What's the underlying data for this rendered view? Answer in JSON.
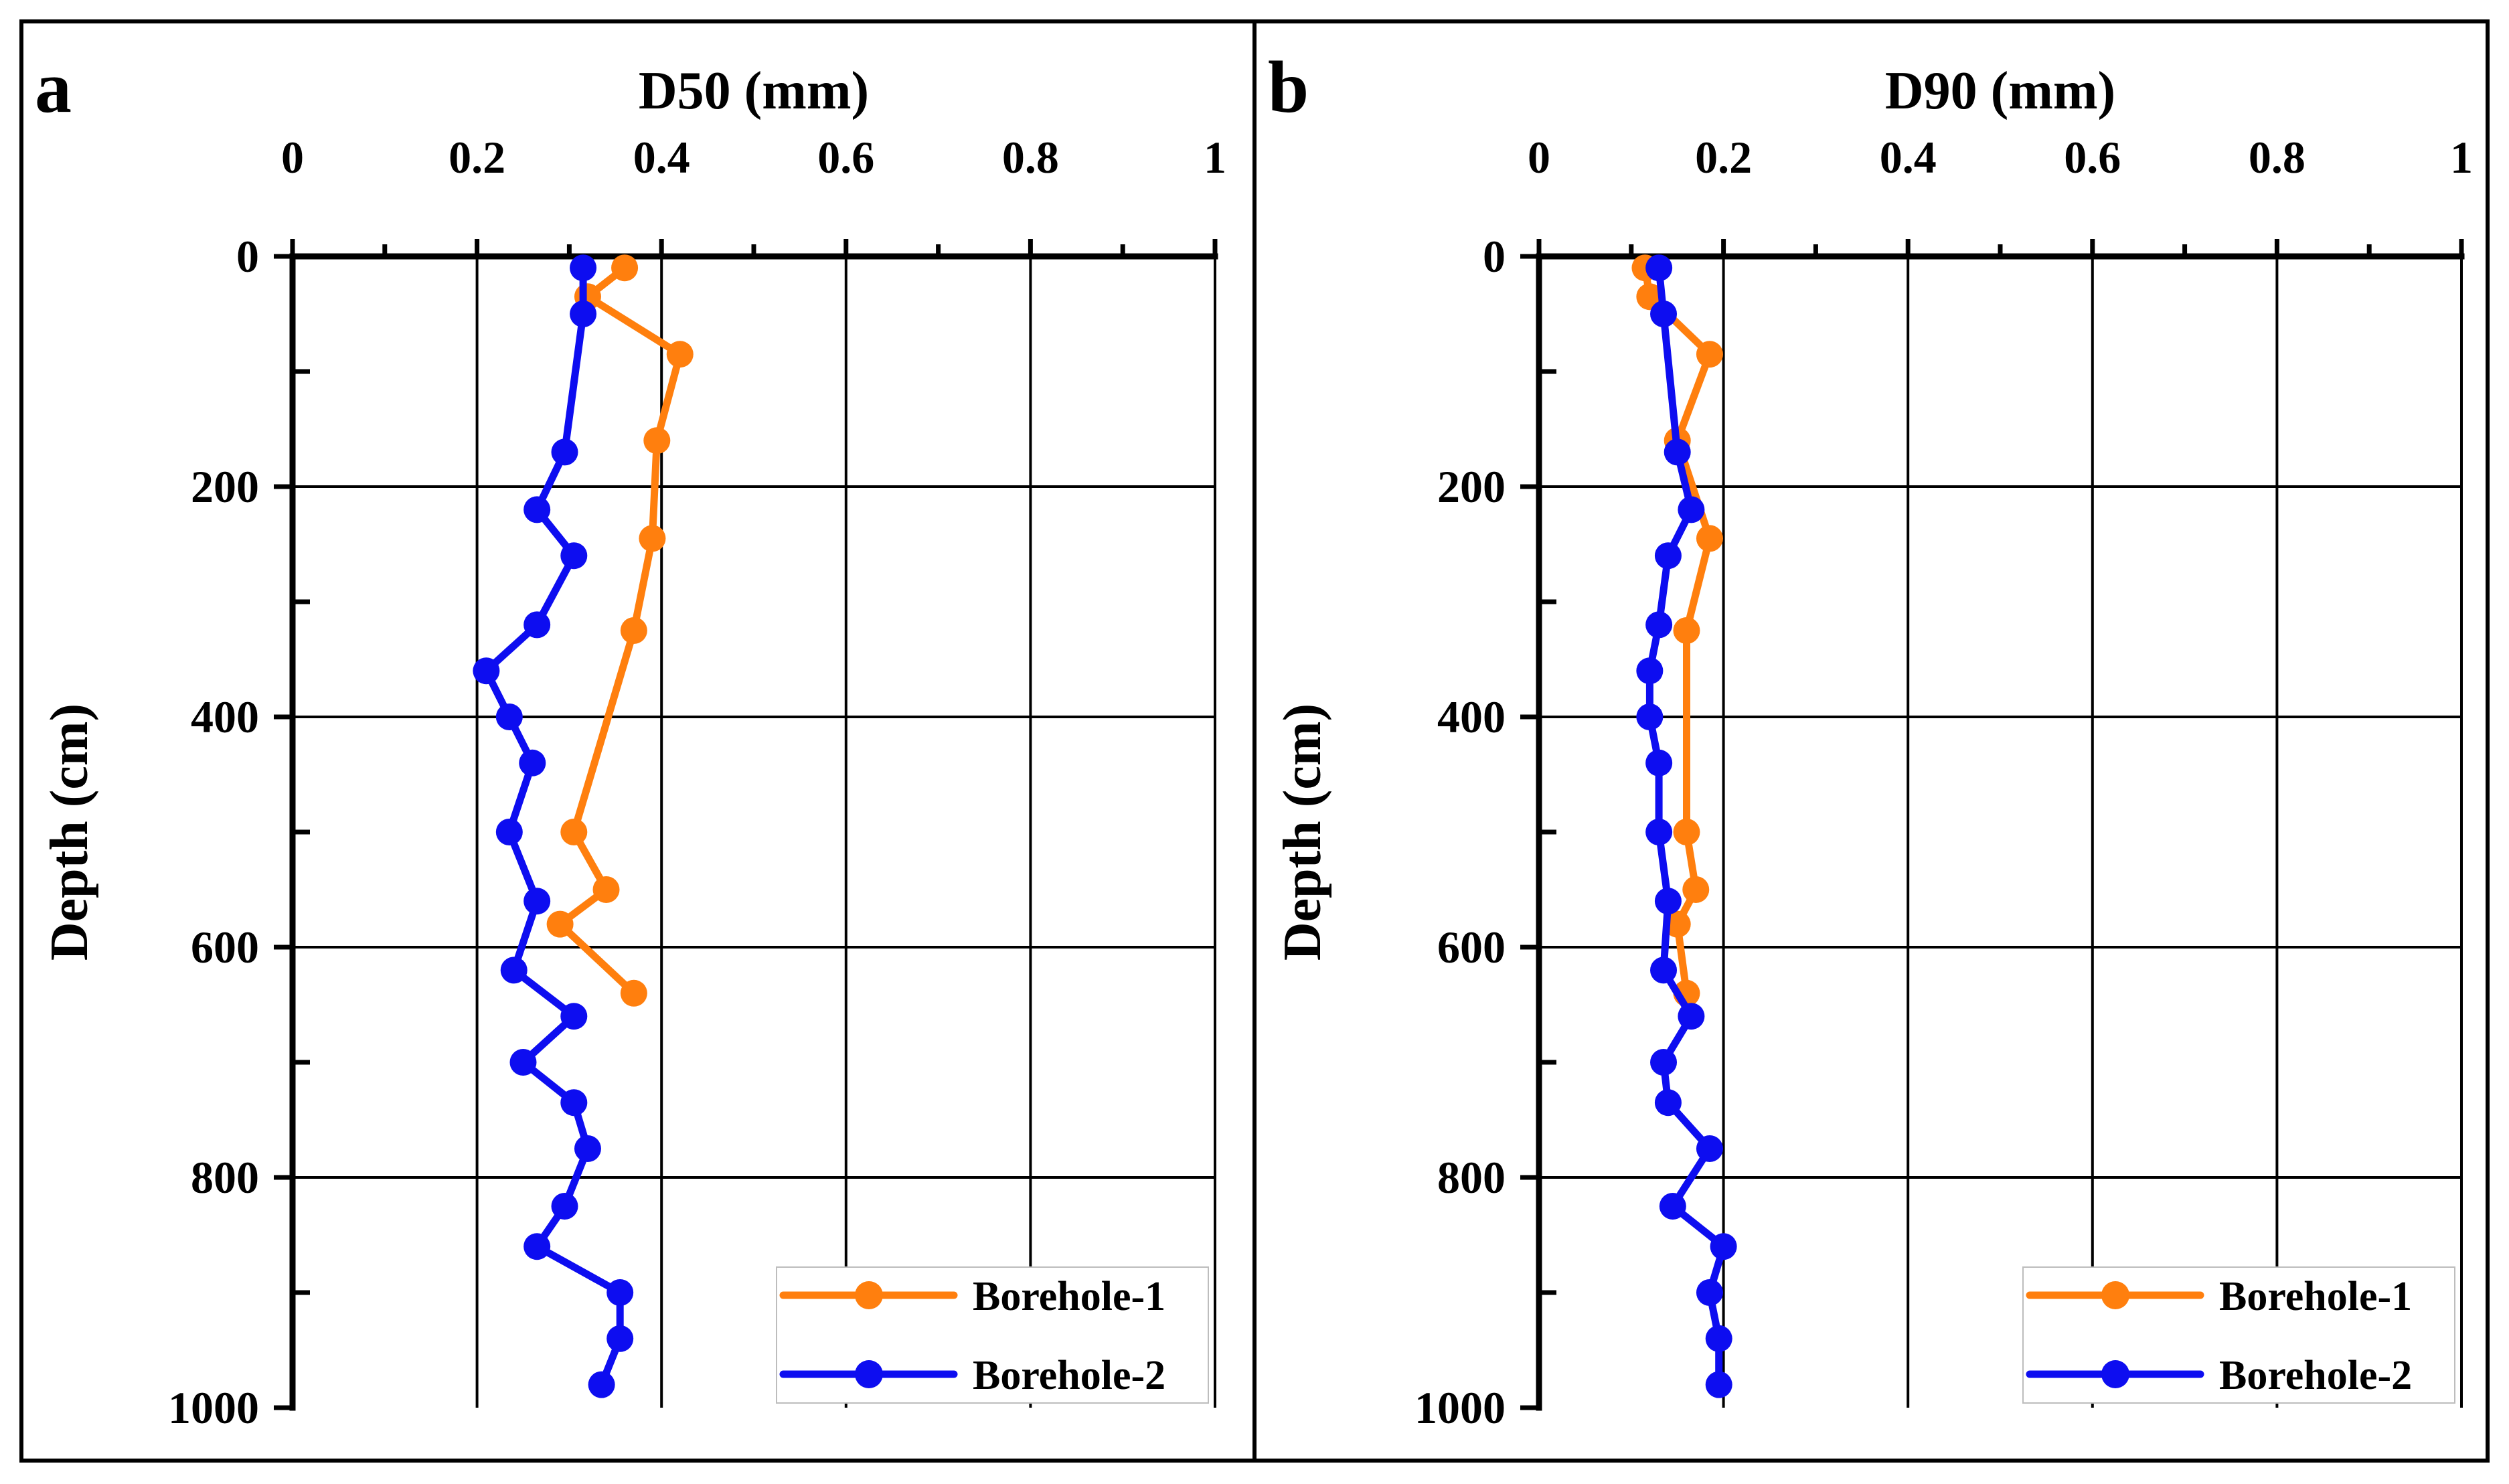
{
  "colors": {
    "borehole1": "#FF7F0E",
    "borehole2": "#0D0DF0",
    "axis": "#000000"
  },
  "chart_data": [
    {
      "type": "line",
      "panel_label": "a",
      "xlabel": "D50 (mm)",
      "ylabel": "Depth (cm)",
      "xlim": [
        0,
        1
      ],
      "ylim": [
        0,
        1000
      ],
      "y_inverted": true,
      "x_axis_position": "top",
      "grid": true,
      "legend_position": "bottom-right",
      "xticks": [
        "0",
        "0.2",
        "0.4",
        "0.6",
        "0.8",
        "1"
      ],
      "yticks": [
        "0",
        "200",
        "400",
        "600",
        "800",
        "1000"
      ],
      "series": [
        {
          "name": "Borehole-1",
          "color": "#FF7F0E",
          "x": [
            0.36,
            0.32,
            0.42,
            0.395,
            0.39,
            0.37,
            0.305,
            0.34,
            0.29,
            0.37
          ],
          "y": [
            10,
            35,
            85,
            160,
            245,
            325,
            500,
            550,
            580,
            640
          ]
        },
        {
          "name": "Borehole-2",
          "color": "#0D0DF0",
          "x": [
            0.315,
            0.315,
            0.295,
            0.265,
            0.305,
            0.265,
            0.21,
            0.235,
            0.26,
            0.235,
            0.265,
            0.24,
            0.305,
            0.25,
            0.305,
            0.32,
            0.295,
            0.265,
            0.355,
            0.355,
            0.335
          ],
          "y": [
            10,
            50,
            170,
            220,
            260,
            320,
            360,
            400,
            440,
            500,
            560,
            620,
            660,
            700,
            735,
            775,
            825,
            860,
            900,
            940,
            980
          ]
        }
      ]
    },
    {
      "type": "line",
      "panel_label": "b",
      "xlabel": "D90 (mm)",
      "ylabel": "Depth (cm)",
      "xlim": [
        0,
        1
      ],
      "ylim": [
        0,
        1000
      ],
      "y_inverted": true,
      "x_axis_position": "top",
      "grid": true,
      "legend_position": "bottom-right",
      "xticks": [
        "0",
        "0.2",
        "0.4",
        "0.6",
        "0.8",
        "1"
      ],
      "yticks": [
        "0",
        "200",
        "400",
        "600",
        "800",
        "1000"
      ],
      "series": [
        {
          "name": "Borehole-1",
          "color": "#FF7F0E",
          "x": [
            0.115,
            0.12,
            0.185,
            0.15,
            0.185,
            0.16,
            0.16,
            0.17,
            0.15,
            0.16
          ],
          "y": [
            10,
            35,
            85,
            160,
            245,
            325,
            500,
            550,
            580,
            640
          ]
        },
        {
          "name": "Borehole-2",
          "color": "#0D0DF0",
          "x": [
            0.13,
            0.135,
            0.15,
            0.165,
            0.14,
            0.13,
            0.12,
            0.12,
            0.13,
            0.13,
            0.14,
            0.135,
            0.165,
            0.135,
            0.14,
            0.185,
            0.145,
            0.2,
            0.185,
            0.195,
            0.195
          ],
          "y": [
            10,
            50,
            170,
            220,
            260,
            320,
            360,
            400,
            440,
            500,
            560,
            620,
            660,
            700,
            735,
            775,
            825,
            860,
            900,
            940,
            980
          ]
        }
      ]
    }
  ]
}
